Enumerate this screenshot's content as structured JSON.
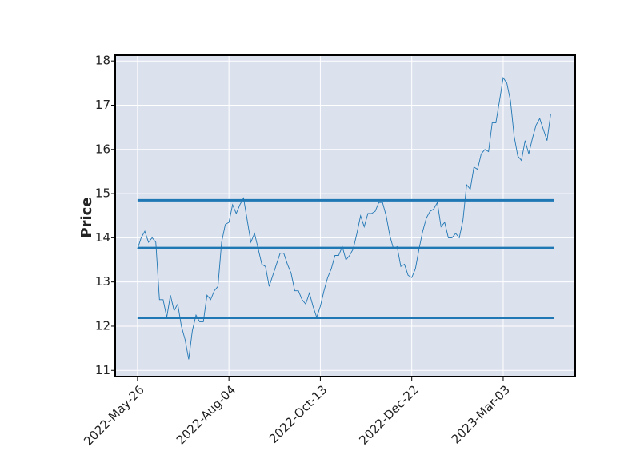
{
  "chart_data": {
    "type": "line",
    "ylabel": "Price",
    "categories": [
      "2022-May-26",
      null,
      null,
      null,
      null,
      null,
      null,
      null,
      null,
      null,
      null,
      null,
      null,
      null,
      null,
      null,
      null,
      null,
      null,
      null,
      null,
      null,
      null,
      null,
      null,
      "2022-Aug-04",
      null,
      null,
      null,
      null,
      null,
      null,
      null,
      null,
      null,
      null,
      null,
      null,
      null,
      null,
      null,
      null,
      null,
      null,
      null,
      null,
      null,
      null,
      null,
      null,
      "2022-Oct-13",
      null,
      null,
      null,
      null,
      null,
      null,
      null,
      null,
      null,
      null,
      null,
      null,
      null,
      null,
      null,
      null,
      null,
      null,
      null,
      null,
      null,
      null,
      null,
      null,
      "2022-Dec-22",
      null,
      null,
      null,
      null,
      null,
      null,
      null,
      null,
      null,
      null,
      null,
      null,
      null,
      null,
      null,
      null,
      null,
      null,
      null,
      null,
      null,
      null,
      null,
      null,
      "2023-Mar-03",
      null,
      null,
      null,
      null,
      null,
      null,
      null,
      null,
      null,
      null,
      null,
      null,
      null
    ],
    "series": [
      {
        "color": "#1f77b4",
        "values": [
          13.75,
          14.0,
          14.15,
          13.9,
          14.0,
          13.9,
          12.6,
          12.6,
          12.2,
          12.7,
          12.35,
          12.5,
          12.0,
          11.7,
          11.25,
          11.9,
          12.25,
          12.1,
          12.1,
          12.7,
          12.6,
          12.8,
          12.9,
          13.9,
          14.3,
          14.35,
          14.75,
          14.55,
          14.75,
          14.9,
          14.4,
          13.9,
          14.1,
          13.75,
          13.4,
          13.35,
          12.9,
          13.15,
          13.4,
          13.65,
          13.65,
          13.4,
          13.2,
          12.8,
          12.8,
          12.6,
          12.5,
          12.75,
          12.45,
          12.2,
          12.45,
          12.8,
          13.1,
          13.3,
          13.6,
          13.6,
          13.8,
          13.5,
          13.6,
          13.75,
          14.1,
          14.5,
          14.25,
          14.55,
          14.55,
          14.6,
          14.8,
          14.8,
          14.5,
          14.05,
          13.75,
          13.8,
          13.35,
          13.4,
          13.15,
          13.1,
          13.3,
          13.75,
          14.15,
          14.45,
          14.6,
          14.65,
          14.8,
          14.25,
          14.35,
          14.0,
          14.0,
          14.1,
          14.0,
          14.4,
          15.2,
          15.1,
          15.6,
          15.55,
          15.9,
          16.0,
          15.95,
          16.6,
          16.6,
          17.1,
          17.62,
          17.5,
          17.1,
          16.3,
          15.85,
          15.75,
          16.2,
          15.9,
          16.25,
          16.55,
          16.7,
          16.45,
          16.2,
          16.8
        ]
      }
    ],
    "hlines": {
      "values": [
        14.85,
        13.77,
        12.19
      ],
      "color": "#1f77b4"
    },
    "ylim": [
      10.86,
      18.13
    ],
    "yticks": [
      11,
      12,
      13,
      14,
      15,
      16,
      17,
      18
    ],
    "xlim": [
      -6.1,
      119.7
    ],
    "grid": true
  }
}
